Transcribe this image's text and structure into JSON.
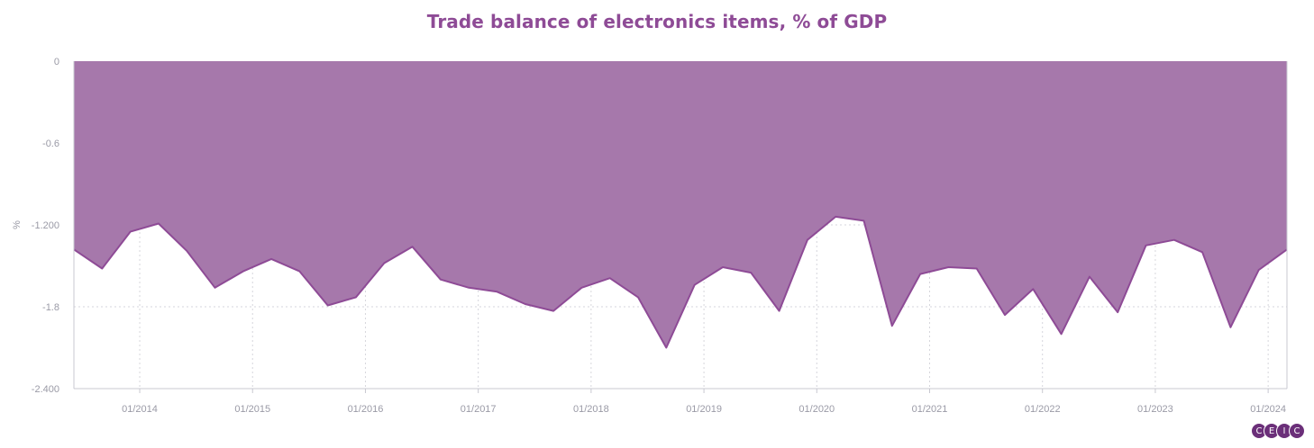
{
  "chart_data": {
    "type": "area",
    "title": "Trade balance of electronics items, % of GDP",
    "ylabel": "%",
    "xlabel": "",
    "ylim": [
      -2.4,
      0
    ],
    "yticks": [
      0,
      -0.6,
      -1.2,
      -1.8,
      -2.4
    ],
    "ytick_labels": [
      "0",
      "-0.6",
      "-1.200",
      "-1.8",
      "-2.400"
    ],
    "xlim": [
      "2013-06",
      "2024-03"
    ],
    "xticks": [
      "2014-01",
      "2015-01",
      "2016-01",
      "2017-01",
      "2018-01",
      "2019-01",
      "2020-01",
      "2021-01",
      "2022-01",
      "2023-01",
      "2024-01"
    ],
    "xtick_labels": [
      "01/2014",
      "01/2015",
      "01/2016",
      "01/2017",
      "01/2018",
      "01/2019",
      "01/2020",
      "01/2021",
      "01/2022",
      "01/2023",
      "01/2024"
    ],
    "grid": true,
    "series": [
      {
        "x": [
          "2013-06",
          "2013-09",
          "2013-12",
          "2014-03",
          "2014-06",
          "2014-09",
          "2014-12",
          "2015-03",
          "2015-06",
          "2015-09",
          "2015-12",
          "2016-03",
          "2016-06",
          "2016-09",
          "2016-12",
          "2017-03",
          "2017-06",
          "2017-09",
          "2017-12",
          "2018-03",
          "2018-06",
          "2018-09",
          "2018-12",
          "2019-03",
          "2019-06",
          "2019-09",
          "2019-12",
          "2020-03",
          "2020-06",
          "2020-09",
          "2020-12",
          "2021-03",
          "2021-06",
          "2021-09",
          "2021-12",
          "2022-03",
          "2022-06",
          "2022-09",
          "2022-12",
          "2023-03",
          "2023-06",
          "2023-09",
          "2023-12",
          "2024-03"
        ],
        "values": [
          -1.38,
          -1.52,
          -1.25,
          -1.19,
          -1.39,
          -1.66,
          -1.54,
          -1.45,
          -1.54,
          -1.79,
          -1.73,
          -1.48,
          -1.36,
          -1.6,
          -1.66,
          -1.69,
          -1.78,
          -1.83,
          -1.66,
          -1.59,
          -1.73,
          -2.1,
          -1.64,
          -1.51,
          -1.55,
          -1.83,
          -1.31,
          -1.14,
          -1.17,
          -1.94,
          -1.56,
          -1.51,
          -1.52,
          -1.86,
          -1.67,
          -2.0,
          -1.58,
          -1.84,
          -1.35,
          -1.31,
          -1.4,
          -1.95,
          -1.53,
          -1.38
        ]
      }
    ],
    "colors": {
      "fill": "#a678ab",
      "line": "#8e4b96",
      "title": "#8e4b96",
      "tick": "#9a9aa6",
      "grid": "#d6d6dc",
      "axis": "#c8c8d0"
    }
  },
  "logo": {
    "letters": [
      "C",
      "E",
      "I",
      "C"
    ]
  }
}
